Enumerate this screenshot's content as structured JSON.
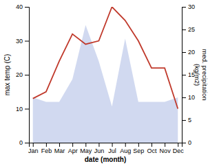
{
  "chart_data": {
    "type": "line",
    "xlabel": "date (month)",
    "ylabel": "max temp (C)",
    "y2label": "med. precipitation\n(kg/m2)",
    "categories": [
      "Jan",
      "Feb",
      "Mar",
      "Apr",
      "May",
      "Jun",
      "Jul",
      "Aug",
      "Sep",
      "Oct",
      "Nov",
      "Dec"
    ],
    "series": [
      {
        "type": "area",
        "axis": "y2",
        "color": "#b8c4e8",
        "values": [
          10,
          9,
          9,
          14,
          26,
          18,
          8,
          23,
          9,
          9,
          9,
          10
        ]
      },
      {
        "type": "line",
        "color": "#c0392b",
        "values": [
          13,
          15,
          24,
          32,
          29,
          30,
          40,
          36,
          30,
          22,
          22,
          10
        ]
      }
    ],
    "ylim": [
      0,
      40
    ],
    "yticks": [
      0,
      10,
      20,
      30,
      40
    ],
    "y2lim": [
      0,
      30
    ],
    "y2ticks": [
      0,
      5,
      10,
      15,
      20,
      25,
      30
    ],
    "grid": false
  }
}
